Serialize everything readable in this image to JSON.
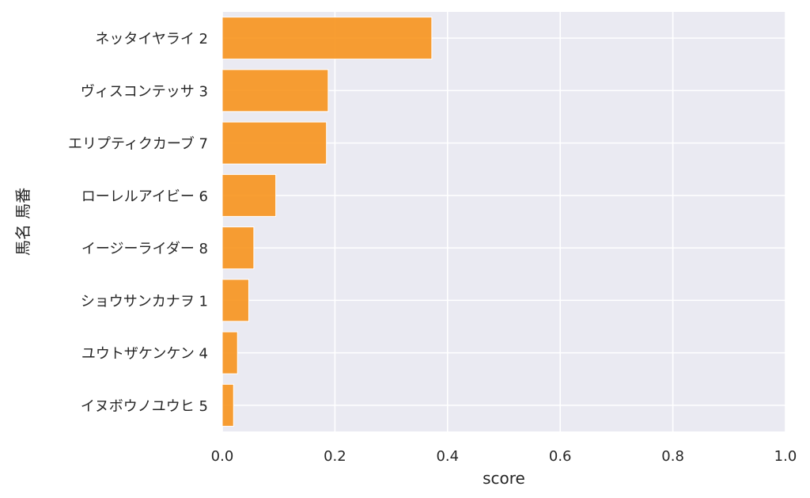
{
  "chart_data": {
    "type": "bar",
    "orientation": "horizontal",
    "categories": [
      "ネッタイヤライ 2",
      "ヴィスコンテッサ 3",
      "エリプティクカーブ 7",
      "ローレルアイビー 6",
      "イージーライダー 8",
      "ショウサンカナヲ 1",
      "ユウトザケンケン 4",
      "イヌボウノユウヒ 5"
    ],
    "values": [
      0.372,
      0.188,
      0.185,
      0.095,
      0.056,
      0.047,
      0.027,
      0.02
    ],
    "xlabel": "score",
    "ylabel": "馬名 馬番",
    "xlim": [
      0,
      1
    ],
    "xticks": [
      "0.0",
      "0.2",
      "0.4",
      "0.6",
      "0.8",
      "1.0"
    ],
    "grid": true,
    "colors": {
      "bar": "#f7941d",
      "plot_background": "#eaeaf2",
      "grid": "#ffffff"
    }
  }
}
